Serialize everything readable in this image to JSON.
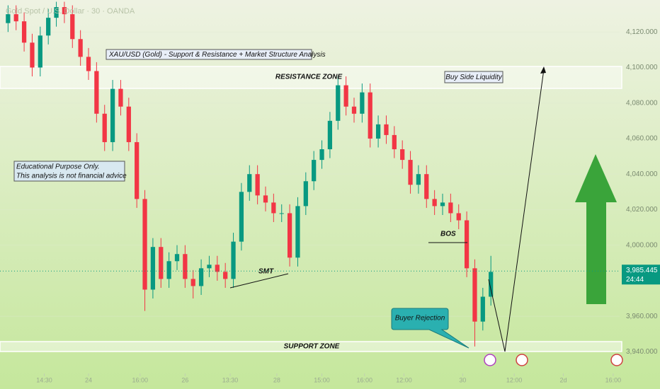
{
  "chart_data": {
    "type": "candlestick",
    "title": "Gold Spot / U.S. Dollar · 30 · OANDA",
    "open": [
      4125,
      4130,
      4126,
      4114,
      4100,
      4118,
      4128,
      4134,
      4130,
      4116,
      4106,
      4098,
      4074,
      4058,
      4088,
      4078,
      4058,
      4026,
      3975,
      3999,
      3981,
      3991,
      3995,
      3981,
      3977,
      3987,
      3989,
      3985,
      3981,
      4002,
      4030,
      4040,
      4028,
      4024,
      4018,
      4018,
      3993,
      4022,
      4036,
      4048,
      4054,
      4070,
      4090,
      4078,
      4074,
      4086,
      4060,
      4068,
      4062,
      4054,
      4048,
      4034,
      4040,
      4026,
      4022,
      4024,
      4018,
      4014,
      3987,
      3957,
      3971
    ],
    "high": [
      4135,
      4135,
      4131,
      4119,
      4123,
      4133,
      4137,
      4137,
      4135,
      4121,
      4111,
      4103,
      4079,
      4093,
      4093,
      4083,
      4063,
      4031,
      4004,
      4004,
      3996,
      4000,
      4000,
      3986,
      3992,
      3994,
      3994,
      3990,
      4007,
      4035,
      4045,
      4045,
      4033,
      4029,
      4023,
      4023,
      4027,
      4041,
      4053,
      4059,
      4075,
      4095,
      4095,
      4083,
      4091,
      4091,
      4073,
      4073,
      4067,
      4059,
      4053,
      4045,
      4045,
      4031,
      4029,
      4029,
      4023,
      4019,
      3992,
      3976,
      3994
    ],
    "low": [
      4120,
      4121,
      4109,
      4095,
      4095,
      4113,
      4123,
      4125,
      4111,
      4101,
      4093,
      4069,
      4053,
      4053,
      4073,
      4053,
      4021,
      3963,
      3970,
      3976,
      3976,
      3986,
      3976,
      3970,
      3972,
      3982,
      3980,
      3976,
      3976,
      3997,
      4025,
      4023,
      4019,
      4013,
      4013,
      3988,
      3988,
      4017,
      4031,
      4043,
      4049,
      4065,
      4073,
      4069,
      4069,
      4055,
      4055,
      4057,
      4049,
      4043,
      4029,
      4029,
      4021,
      4017,
      4017,
      4013,
      4009,
      3982,
      3943,
      3952,
      3966
    ],
    "close": [
      4130,
      4126,
      4114,
      4100,
      4118,
      4128,
      4134,
      4130,
      4116,
      4106,
      4098,
      4074,
      4058,
      4088,
      4078,
      4058,
      4026,
      3975,
      3999,
      3981,
      3991,
      3995,
      3981,
      3977,
      3987,
      3989,
      3985,
      3981,
      4002,
      4030,
      4040,
      4028,
      4024,
      4018,
      4018,
      3993,
      4022,
      4036,
      4048,
      4054,
      4070,
      4090,
      4078,
      4074,
      4086,
      4060,
      4068,
      4062,
      4054,
      4048,
      4034,
      4040,
      4026,
      4022,
      4024,
      4018,
      4014,
      3987,
      3957,
      3971,
      3985
    ],
    "up_color": "#089981",
    "down_color": "#f23645",
    "xlim": [
      -1,
      76
    ],
    "ylim": [
      3931,
      4138
    ],
    "yticks": [
      {
        "value": 4120,
        "label": "4,120.000"
      },
      {
        "value": 4100,
        "label": "4,100.000"
      },
      {
        "value": 4080,
        "label": "4,080.000"
      },
      {
        "value": 4060,
        "label": "4,060.000"
      },
      {
        "value": 4040,
        "label": "4,040.000"
      },
      {
        "value": 4020,
        "label": "4,020.000"
      },
      {
        "value": 4000,
        "label": "4,000.000"
      },
      {
        "value": 3960,
        "label": "3,960.000"
      },
      {
        "value": 3940,
        "label": "3,940.000"
      }
    ],
    "xticks": [
      {
        "value": 4.5,
        "label": "14:30"
      },
      {
        "value": 10,
        "label": "24"
      },
      {
        "value": 16.4,
        "label": "16:00"
      },
      {
        "value": 22,
        "label": "26"
      },
      {
        "value": 27.6,
        "label": "13:30"
      },
      {
        "value": 33.4,
        "label": "28"
      },
      {
        "value": 39,
        "label": "15:00"
      },
      {
        "value": 44.3,
        "label": "16:00"
      },
      {
        "value": 49.2,
        "label": "12:00"
      },
      {
        "value": 56.5,
        "label": "30"
      },
      {
        "value": 62.9,
        "label": "12:00"
      },
      {
        "value": 69,
        "label": "2d"
      },
      {
        "value": 75.2,
        "label": "16:00"
      }
    ],
    "current_price": {
      "value": 3985.445,
      "label": "3,985.445"
    },
    "countdown": "24:44"
  },
  "annotations": {
    "heading": "XAU/USD (Gold) - Support & Resistance + Market Structure Analysis",
    "resistance": "RESISTANCE ZONE",
    "liquidity": "Buy Side Liquidity",
    "disclaimer_1": "Educational Purpose Only.",
    "disclaimer_2": "This analysis is not financial advice",
    "smt": "SMT",
    "bos": "BOS",
    "rejection": "Buyer Rejection",
    "support": "SUPPORT ZONE"
  }
}
